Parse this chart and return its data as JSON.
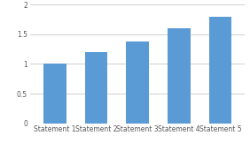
{
  "categories": [
    "Statement 1",
    "Statement 2",
    "Statement 3",
    "Statement 4",
    "Statement 5"
  ],
  "values": [
    1.0,
    1.2,
    1.375,
    1.6,
    1.8
  ],
  "bar_color": "#5B9BD5",
  "ylim": [
    0,
    2.0
  ],
  "yticks": [
    0,
    0.5,
    1.0,
    1.5,
    2.0
  ],
  "background_color": "#ffffff",
  "grid_color": "#d0d0d0",
  "bar_width": 0.55,
  "tick_fontsize": 5.5,
  "label_color": "#595959"
}
